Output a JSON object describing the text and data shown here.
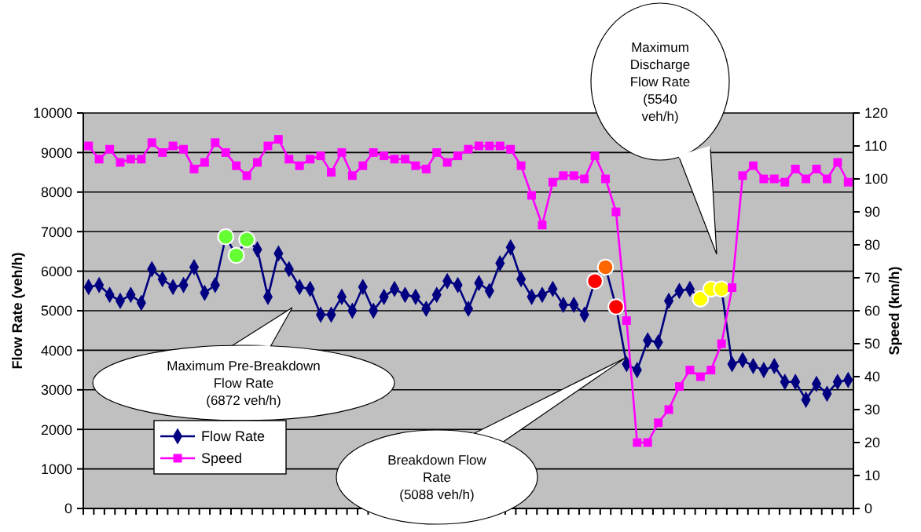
{
  "chart_data": {
    "type": "line",
    "xlabel": null,
    "ylabel": "Flow Rate (veh/h)",
    "y2label": "Speed (km/h)",
    "categories": [
      null,
      null,
      null,
      null,
      null,
      null,
      null,
      null,
      null,
      null,
      null,
      null,
      null,
      null,
      null,
      null,
      null,
      null,
      null,
      null,
      null,
      null,
      null,
      null,
      null,
      null,
      null,
      null,
      null,
      null,
      null,
      null,
      null,
      null,
      null,
      null,
      null,
      null,
      null,
      null,
      null,
      null,
      null,
      null,
      null,
      null,
      null,
      null,
      null,
      null,
      null,
      null,
      null,
      null,
      null,
      null,
      null,
      null,
      null,
      null,
      null,
      null,
      null,
      null,
      null,
      null,
      null,
      null,
      null,
      null,
      null,
      null,
      null
    ],
    "ylim": [
      0,
      10000
    ],
    "yticks": [
      0,
      1000,
      2000,
      3000,
      4000,
      5000,
      6000,
      7000,
      8000,
      9000,
      10000
    ],
    "y2lim": [
      0,
      120
    ],
    "y2ticks": [
      0,
      10,
      20,
      30,
      40,
      50,
      60,
      70,
      80,
      90,
      100,
      110,
      120
    ],
    "grid": "y",
    "legend": "bottom left",
    "series": [
      {
        "name": "Flow Rate",
        "color": "#000080",
        "marker": "diamond",
        "values": [
          5600,
          5650,
          5400,
          5250,
          5400,
          5200,
          6050,
          5800,
          5600,
          5650,
          6100,
          5450,
          5650,
          6870,
          6400,
          6800,
          6550,
          5350,
          6450,
          6050,
          5600,
          5550,
          4900,
          4900,
          5350,
          5000,
          5600,
          5000,
          5350,
          5550,
          5400,
          5350,
          5050,
          5400,
          5750,
          5650,
          5050,
          5700,
          5500,
          6200,
          6600,
          5800,
          5350,
          5400,
          5550,
          5150,
          5150,
          4900,
          5750,
          6100,
          5100,
          3650,
          3500,
          4250,
          4200,
          5250,
          5500,
          5550,
          5300,
          5550,
          5550,
          3650,
          3750,
          3600,
          3500,
          3600,
          3200,
          3200,
          2750,
          3150,
          2900,
          3200,
          3250
        ],
        "colors": [
          "#000080",
          "#000080",
          "#000080",
          "#000080",
          "#000080",
          "#000080",
          "#000080",
          "#000080",
          "#000080",
          "#000080",
          "#000080",
          "#000080",
          "#000080",
          "#66ff33",
          "#66ff33",
          "#66ff33",
          "#000080",
          "#000080",
          "#000080",
          "#000080",
          "#000080",
          "#000080",
          "#000080",
          "#000080",
          "#000080",
          "#000080",
          "#000080",
          "#000080",
          "#000080",
          "#000080",
          "#000080",
          "#000080",
          "#000080",
          "#000080",
          "#000080",
          "#000080",
          "#000080",
          "#000080",
          "#000080",
          "#000080",
          "#000080",
          "#000080",
          "#000080",
          "#000080",
          "#000080",
          "#000080",
          "#000080",
          "#000080",
          "#ff0000",
          "#ff6600",
          "#ff0000",
          "#000080",
          "#000080",
          "#000080",
          "#000080",
          "#000080",
          "#000080",
          "#000080",
          "#ffff00",
          "#ffff00",
          "#ffff00",
          "#000080",
          "#000080",
          "#000080",
          "#000080",
          "#000080",
          "#000080",
          "#000080",
          "#000080",
          "#000080",
          "#000080",
          "#000080",
          "#000080"
        ]
      },
      {
        "name": "Speed",
        "color": "#ff00ff",
        "marker": "square",
        "axis": "y2",
        "values": [
          110,
          106,
          109,
          105,
          106,
          106,
          111,
          108,
          110,
          109,
          103,
          105,
          111,
          108,
          104,
          101,
          105,
          110,
          112,
          106,
          104,
          106,
          107,
          102,
          108,
          101,
          104,
          108,
          107,
          106,
          106,
          104,
          103,
          108,
          105,
          107,
          109,
          110,
          110,
          110,
          109,
          104,
          95,
          86,
          99,
          101,
          101,
          100,
          107,
          100,
          90,
          57,
          20,
          20,
          26,
          30,
          37,
          42,
          40,
          42,
          50,
          67,
          101,
          104,
          100,
          100,
          99,
          103,
          100,
          103,
          100,
          105,
          99
        ]
      }
    ],
    "annotations": [
      "Maximum Pre-Breakdown\nFlow Rate\n(6872 veh/h)",
      "Breakdown Flow\nRate\n(5088 veh/h)",
      "Maximum\nDischarge\nFlow Rate\n(5540\nveh/h)"
    ]
  }
}
